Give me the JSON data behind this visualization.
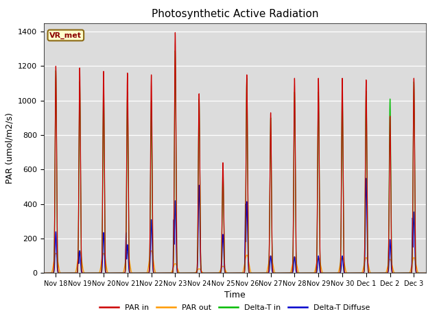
{
  "title": "Photosynthetic Active Radiation",
  "ylabel": "PAR (umol/m2/s)",
  "xlabel": "Time",
  "label_text": "VR_met",
  "colors": {
    "PAR_in": "#cc0000",
    "PAR_out": "#ff9900",
    "Delta_T_in": "#00bb00",
    "Delta_T_Diffuse": "#0000cc"
  },
  "legend_labels": [
    "PAR in",
    "PAR out",
    "Delta-T in",
    "Delta-T Diffuse"
  ],
  "background_color": "#dcdcdc",
  "ylim": [
    0,
    1450
  ],
  "num_days": 16,
  "tick_labels": [
    "Nov 18",
    "Nov 19",
    "Nov 20",
    "Nov 21",
    "Nov 22",
    "Nov 23",
    "Nov 24",
    "Nov 25",
    "Nov 26",
    "Nov 27",
    "Nov 28",
    "Nov 29",
    "Nov 30",
    "Dec 1",
    "Dec 2",
    "Dec 3"
  ],
  "day_peaks_PAR_in": [
    1200,
    1190,
    1170,
    1160,
    1150,
    1395,
    1040,
    640,
    1150,
    930,
    1130,
    1130,
    1130,
    1120,
    910,
    1130
  ],
  "day_peaks_PAR_out": [
    115,
    130,
    115,
    120,
    130,
    55,
    25,
    40,
    105,
    100,
    95,
    90,
    95,
    90,
    80,
    90
  ],
  "day_peaks_Delta_T_in": [
    1175,
    1110,
    1100,
    1050,
    1000,
    1290,
    1010,
    595,
    1130,
    900,
    1050,
    1050,
    1070,
    1055,
    1010,
    1110
  ],
  "day_peaks_Delta_T_Diffuse": [
    240,
    130,
    235,
    165,
    310,
    420,
    510,
    225,
    415,
    100,
    95,
    100,
    100,
    550,
    195,
    355
  ],
  "day_blue_secondary": [
    0,
    120,
    0,
    235,
    0,
    310,
    0,
    0,
    400,
    0,
    0,
    0,
    0,
    0,
    0,
    320
  ],
  "day_blue_tertiary": [
    0,
    0,
    0,
    0,
    0,
    0,
    0,
    0,
    0,
    0,
    0,
    0,
    0,
    0,
    0,
    0
  ]
}
